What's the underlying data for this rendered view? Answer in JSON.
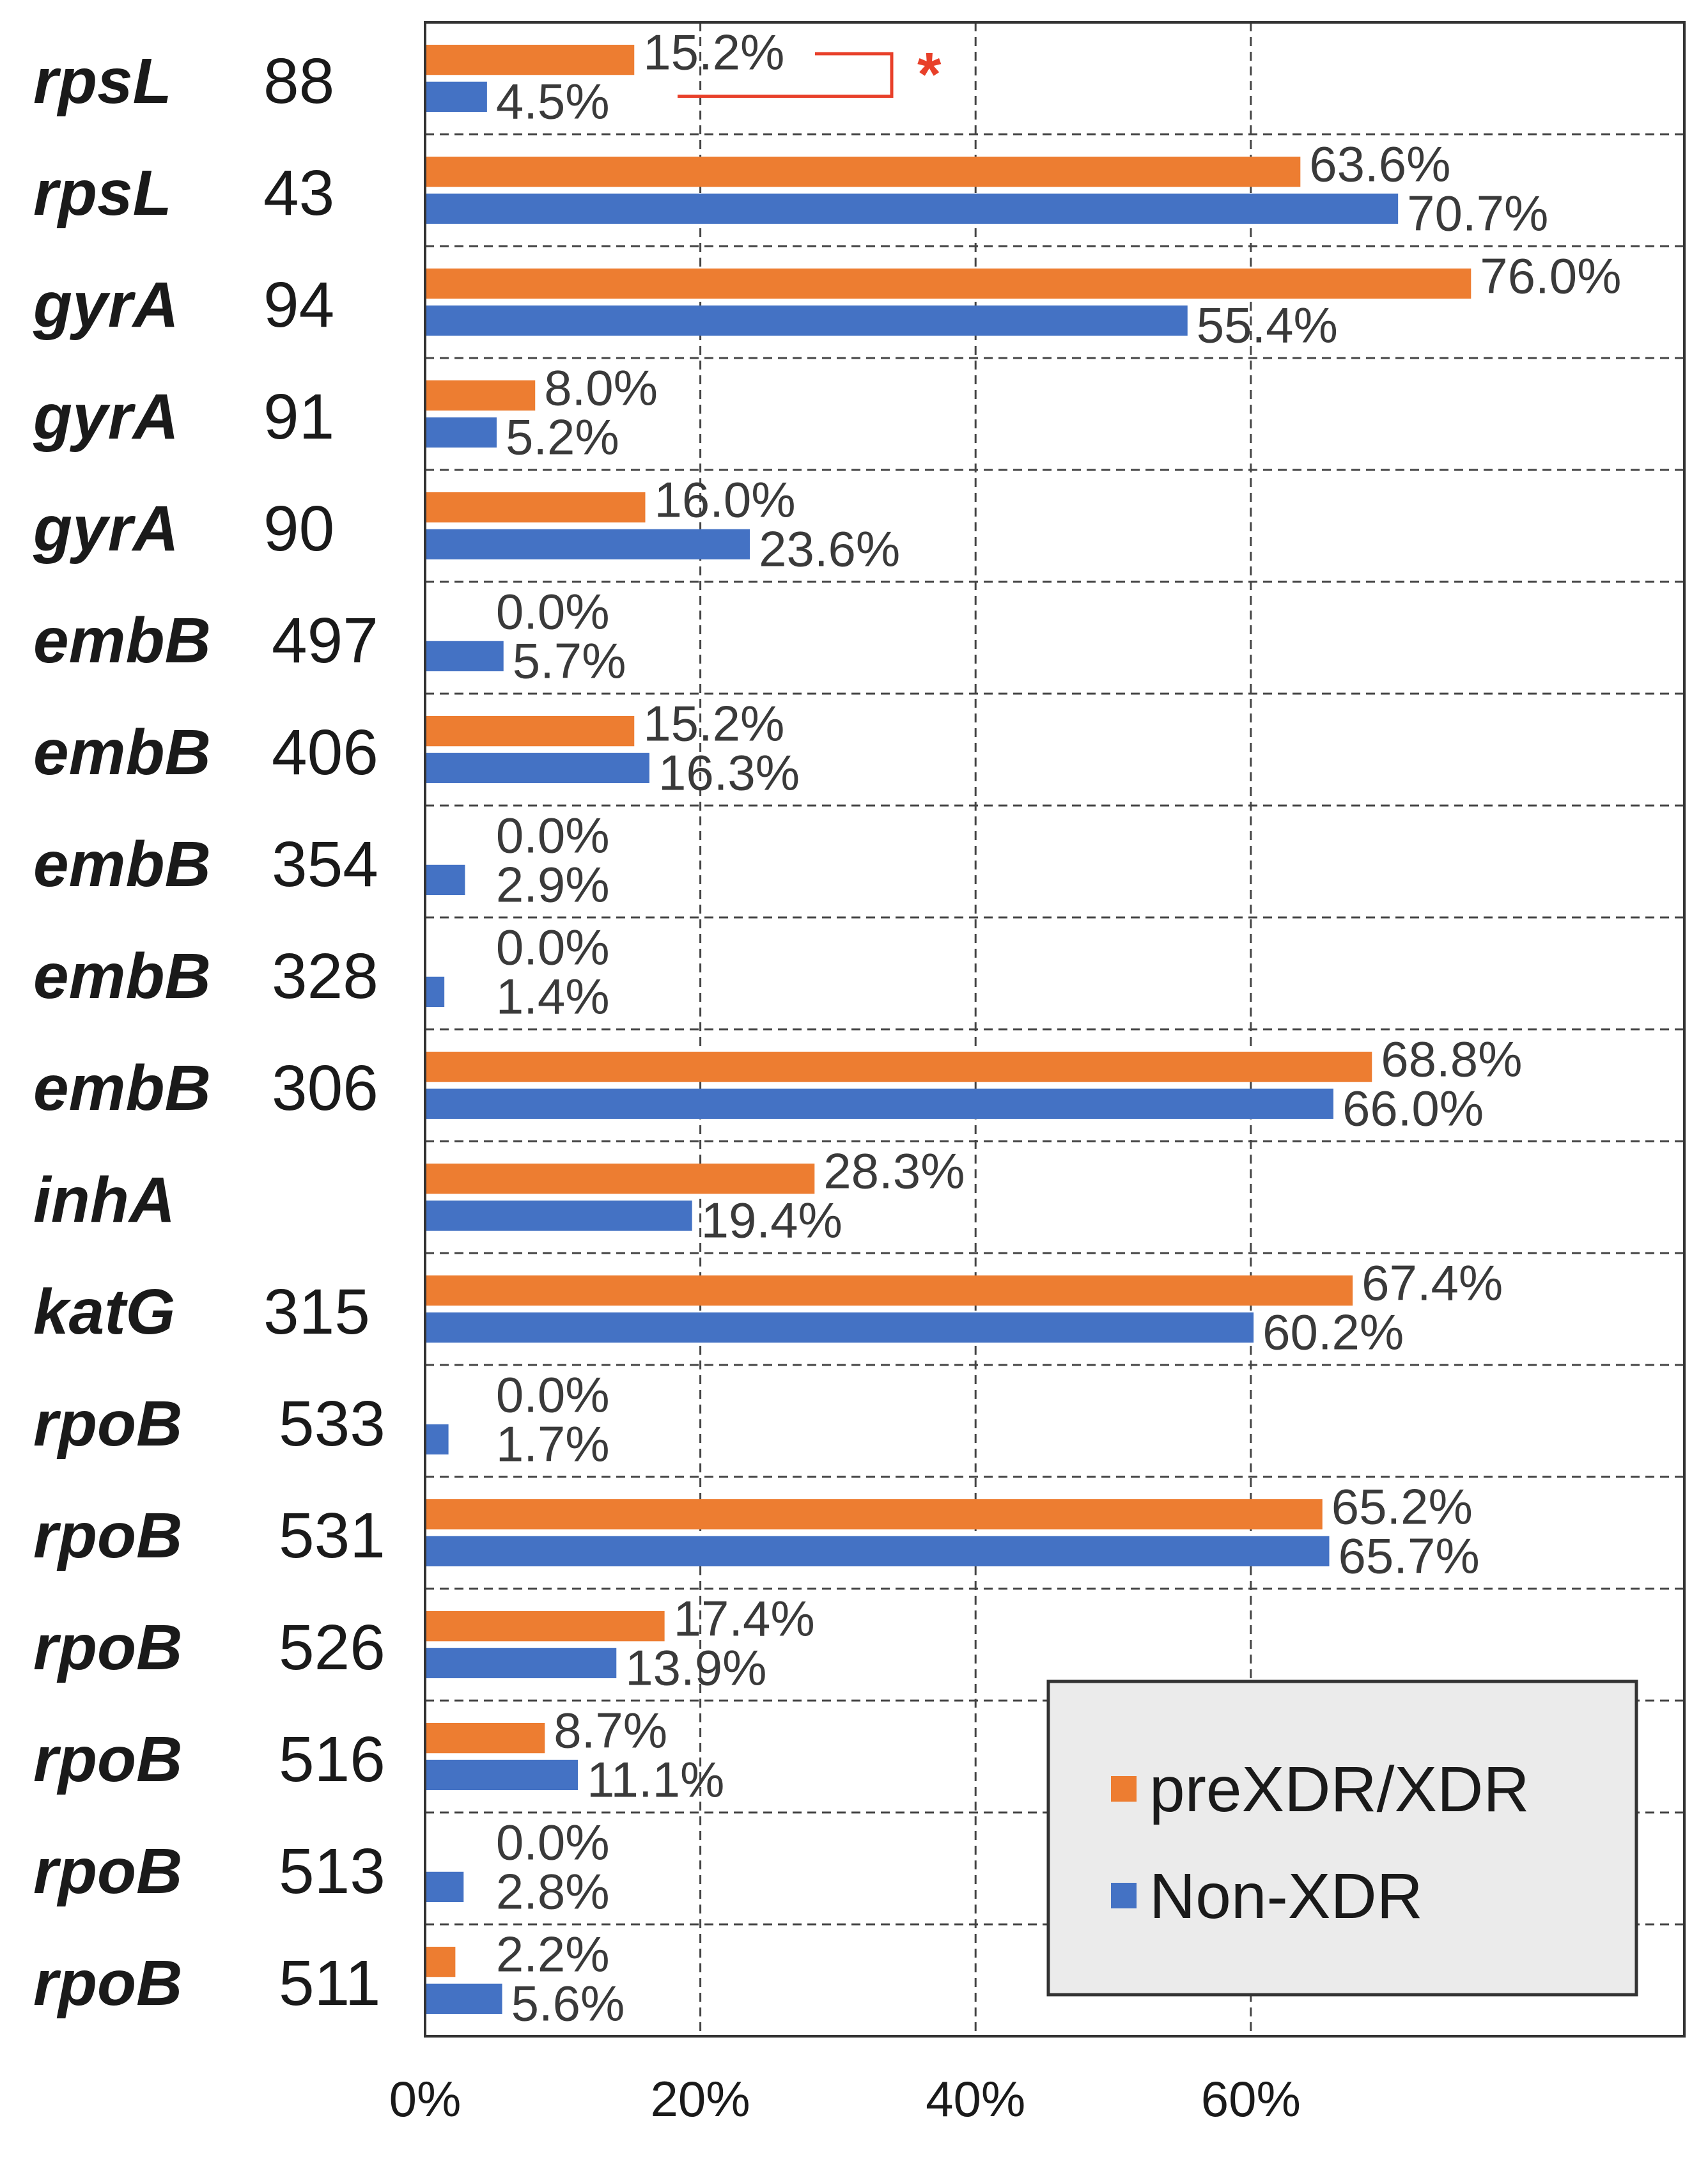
{
  "chart_data": {
    "type": "bar",
    "orientation": "horizontal",
    "title": "",
    "xlabel": "",
    "ylabel": "",
    "xlim": [
      0,
      91.5
    ],
    "x_ticks": [
      "0%",
      "20%",
      "40%",
      "60%"
    ],
    "x_tick_values": [
      0,
      20,
      40,
      60
    ],
    "grid": true,
    "legend_position": "bottom-right",
    "colors": {
      "preXDR": "#ED7D31",
      "nonXDR": "#4472C4",
      "annotation": "#E8402A"
    },
    "categories": [
      {
        "gene": "rpsL",
        "codon": "88"
      },
      {
        "gene": "rpsL",
        "codon": "43"
      },
      {
        "gene": "gyrA",
        "codon": "94"
      },
      {
        "gene": "gyrA",
        "codon": "91"
      },
      {
        "gene": "gyrA",
        "codon": "90"
      },
      {
        "gene": "embB",
        "codon": "497"
      },
      {
        "gene": "embB",
        "codon": "406"
      },
      {
        "gene": "embB",
        "codon": "354"
      },
      {
        "gene": "embB",
        "codon": "328"
      },
      {
        "gene": "embB",
        "codon": "306"
      },
      {
        "gene": "inhA",
        "codon": ""
      },
      {
        "gene": "katG",
        "codon": "315"
      },
      {
        "gene": "rpoB",
        "codon": "533"
      },
      {
        "gene": "rpoB",
        "codon": "531"
      },
      {
        "gene": "rpoB",
        "codon": "526"
      },
      {
        "gene": "rpoB",
        "codon": "516"
      },
      {
        "gene": "rpoB",
        "codon": "513"
      },
      {
        "gene": "rpoB",
        "codon": "511"
      }
    ],
    "series": [
      {
        "name": "preXDR/XDR",
        "values": [
          15.2,
          63.6,
          76.0,
          8.0,
          16.0,
          0.0,
          15.2,
          0.0,
          0.0,
          68.8,
          28.3,
          67.4,
          0.0,
          65.2,
          17.4,
          8.7,
          0.0,
          2.2
        ],
        "labels": [
          "15.2%",
          "63.6%",
          "76.0%",
          "8.0%",
          "16.0%",
          "0.0%",
          "15.2%",
          "0.0%",
          "0.0%",
          "68.8%",
          "28.3%",
          "67.4%",
          "0.0%",
          "65.2%",
          "17.4%",
          "8.7%",
          "0.0%",
          "2.2%"
        ]
      },
      {
        "name": "Non-XDR",
        "values": [
          4.5,
          70.7,
          55.4,
          5.2,
          23.6,
          5.7,
          16.3,
          2.9,
          1.4,
          66.0,
          19.4,
          60.2,
          1.7,
          65.7,
          13.9,
          11.1,
          2.8,
          5.6
        ],
        "labels": [
          "4.5%",
          "70.7%",
          "55.4%",
          "5.2%",
          "23.6%",
          "5.7%",
          "16.3%",
          "2.9%",
          "1.4%",
          "66.0%",
          "19.4%",
          "60.2%",
          "1.7%",
          "65.7%",
          "13.9%",
          "11.1%",
          "2.8%",
          "5.6%"
        ]
      }
    ],
    "annotations": [
      {
        "text": "*",
        "category_index": 0,
        "note": "significance bracket between preXDR/XDR and Non-XDR"
      }
    ]
  }
}
